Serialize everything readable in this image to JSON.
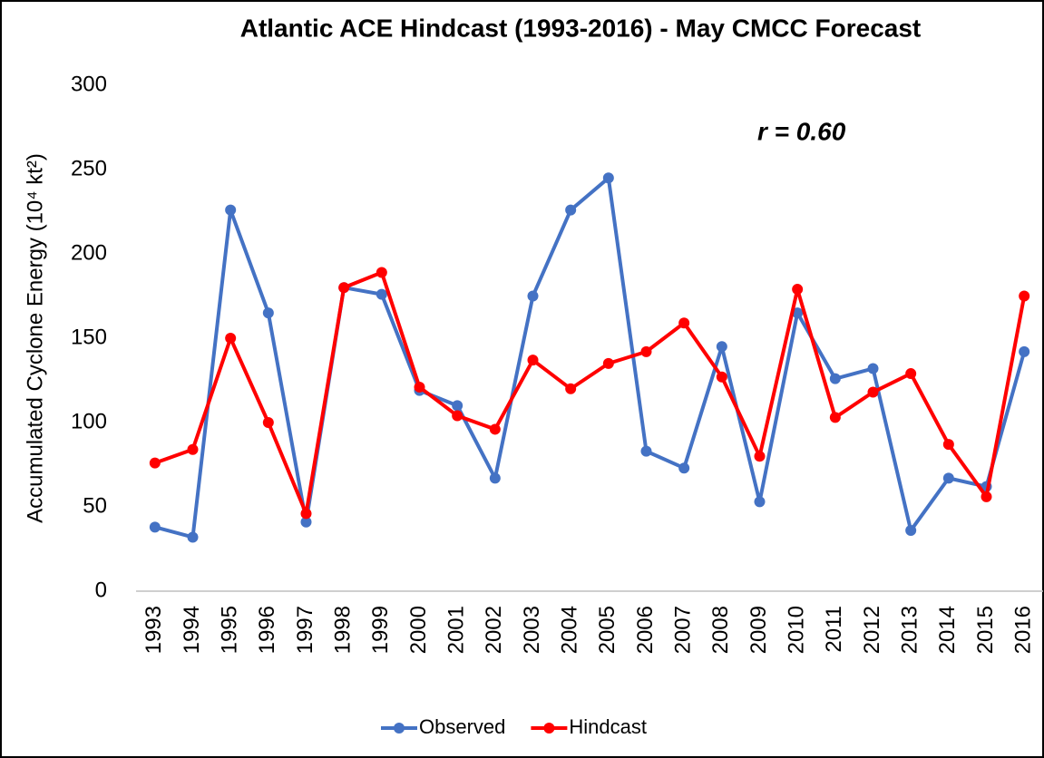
{
  "chart_data": {
    "type": "line",
    "title": "Atlantic ACE Hindcast (1993-2016) - May CMCC Forecast",
    "y_label": "Accumulated Cyclone Energy (10⁴ kt²)",
    "annotation": "r = 0.60",
    "categories": [
      "1993",
      "1994",
      "1995",
      "1996",
      "1997",
      "1998",
      "1999",
      "2000",
      "2001",
      "2002",
      "2003",
      "2004",
      "2005",
      "2006",
      "2007",
      "2008",
      "2009",
      "2010",
      "2011",
      "2012",
      "2013",
      "2014",
      "2015",
      "2016"
    ],
    "series": [
      {
        "name": "Observed",
        "color": "#4472c4",
        "values": [
          38,
          32,
          226,
          165,
          41,
          180,
          176,
          119,
          110,
          67,
          175,
          226,
          245,
          83,
          73,
          145,
          53,
          165,
          126,
          132,
          36,
          67,
          62,
          142
        ]
      },
      {
        "name": "Hindcast",
        "color": "#ff0000",
        "values": [
          76,
          84,
          150,
          100,
          46,
          180,
          189,
          121,
          104,
          96,
          137,
          120,
          135,
          142,
          159,
          127,
          80,
          179,
          103,
          118,
          129,
          87,
          56,
          175
        ]
      }
    ],
    "ylim": [
      0,
      300
    ],
    "yticks": [
      0,
      50,
      100,
      150,
      200,
      250,
      300
    ],
    "grid": false,
    "legend": "bottom"
  }
}
